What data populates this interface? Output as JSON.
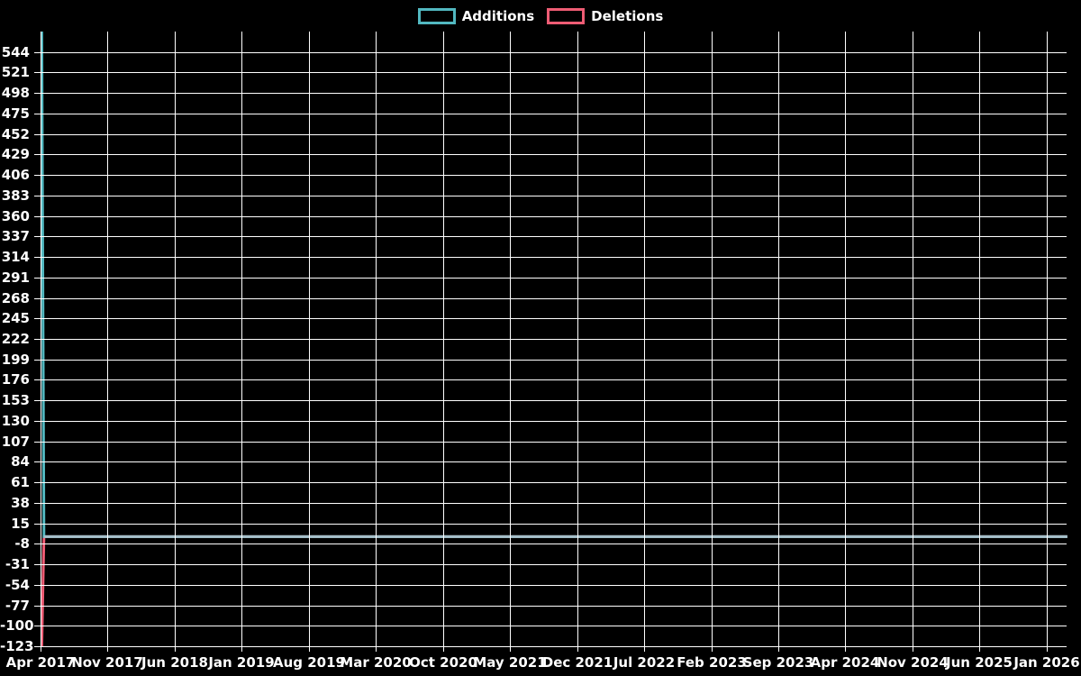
{
  "legend": {
    "items": [
      {
        "id": "additions",
        "label": "Additions",
        "color": "#52b8c0"
      },
      {
        "id": "deletions",
        "label": "Deletions",
        "color": "#ee5c74"
      }
    ]
  },
  "colors": {
    "background": "#000000",
    "grid": "#ffffff",
    "text": "#ffffff",
    "additions": "#52b8c0",
    "deletions": "#ee5c74",
    "overlap_zero_line": "#a6bfc9"
  },
  "chart_data": {
    "type": "line",
    "title": "",
    "xlabel": "",
    "ylabel": "",
    "grid": true,
    "legend_position": "top-center",
    "y_axis": {
      "min": -123,
      "max": 567,
      "tick_step": 23
    },
    "y_tick_labels": [
      544,
      521,
      498,
      475,
      452,
      429,
      406,
      383,
      360,
      337,
      314,
      291,
      268,
      245,
      222,
      199,
      176,
      153,
      130,
      107,
      84,
      61,
      38,
      15,
      -8,
      -31,
      -54,
      -77,
      -100,
      -123
    ],
    "x_tick_labels": [
      "Apr 2017",
      "Nov 2017",
      "Jun 2018",
      "Jan 2019",
      "Aug 2019",
      "Mar 2020",
      "Oct 2020",
      "May 2021",
      "Dec 2021",
      "Jul 2022",
      "Feb 2023",
      "Sep 2023",
      "Apr 2024",
      "Nov 2024",
      "Jun 2025",
      "Jan 2026"
    ],
    "x_axis": {
      "start": "Apr 2017",
      "end": "Jan 2026",
      "label_interval_months": 7
    },
    "series": [
      {
        "name": "Additions",
        "color": "#52b8c0",
        "points": [
          {
            "date": "2017-04-05",
            "value": 567
          },
          {
            "date": "2017-04-12",
            "value": 0
          },
          {
            "date": "2026-03-06",
            "value": 0
          }
        ]
      },
      {
        "name": "Deletions",
        "color": "#ee5c74",
        "points": [
          {
            "date": "2017-04-05",
            "value": -123
          },
          {
            "date": "2017-04-12",
            "value": 0
          },
          {
            "date": "2026-03-06",
            "value": 0
          }
        ]
      }
    ],
    "overlap_note": "Both series are 0 after the first point; overlapping zero lines render as a blended gray-blue line"
  }
}
